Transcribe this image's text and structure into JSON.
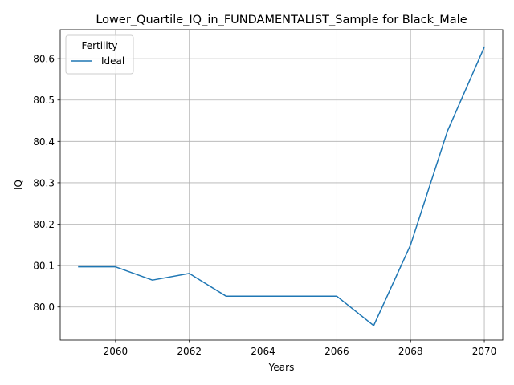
{
  "chart_data": {
    "type": "line",
    "title": "Lower_Quartile_IQ_in_FUNDAMENTALIST_Sample for Black_Male",
    "xlabel": "Years",
    "ylabel": "IQ",
    "xlim": [
      2058.5,
      2070.5
    ],
    "ylim": [
      79.92,
      80.67
    ],
    "xticks": [
      2060,
      2062,
      2064,
      2066,
      2068,
      2070
    ],
    "yticks": [
      80.0,
      80.1,
      80.2,
      80.3,
      80.4,
      80.5,
      80.6
    ],
    "grid": true,
    "legend": {
      "title": "Fertility",
      "placement": "top-left"
    },
    "x": [
      2059,
      2060,
      2061,
      2062,
      2063,
      2064,
      2065,
      2066,
      2067,
      2068,
      2069,
      2070
    ],
    "series": [
      {
        "name": "Ideal",
        "color": "#1f77b4",
        "values": [
          80.097,
          80.097,
          80.065,
          80.081,
          80.026,
          80.026,
          80.026,
          80.026,
          79.955,
          80.15,
          80.425,
          80.628
        ]
      }
    ]
  }
}
